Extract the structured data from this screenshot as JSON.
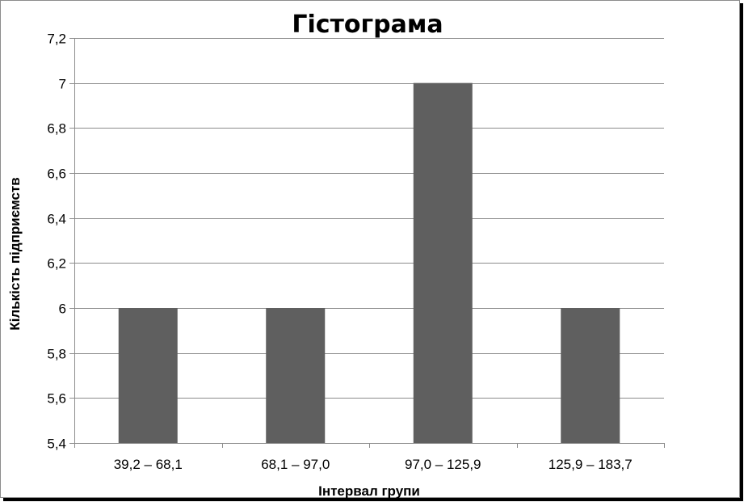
{
  "chart_data": {
    "type": "bar",
    "title": "Гістограма",
    "xlabel": "Інтервал групи",
    "ylabel": "Кількість підприємств",
    "categories": [
      "39,2 – 68,1",
      "68,1 – 97,0",
      "97,0 – 125,9",
      "125,9 – 183,7"
    ],
    "values": [
      6,
      6,
      7,
      6
    ],
    "ylim": [
      5.4,
      7.2
    ],
    "yticks": [
      "5,4",
      "5,6",
      "5,8",
      "6",
      "6,2",
      "6,4",
      "6,6",
      "6,8",
      "7",
      "7,2"
    ],
    "grid": true,
    "legend": "none",
    "bar_color": "#5f5f5f",
    "grid_color": "#8c8c8c"
  }
}
